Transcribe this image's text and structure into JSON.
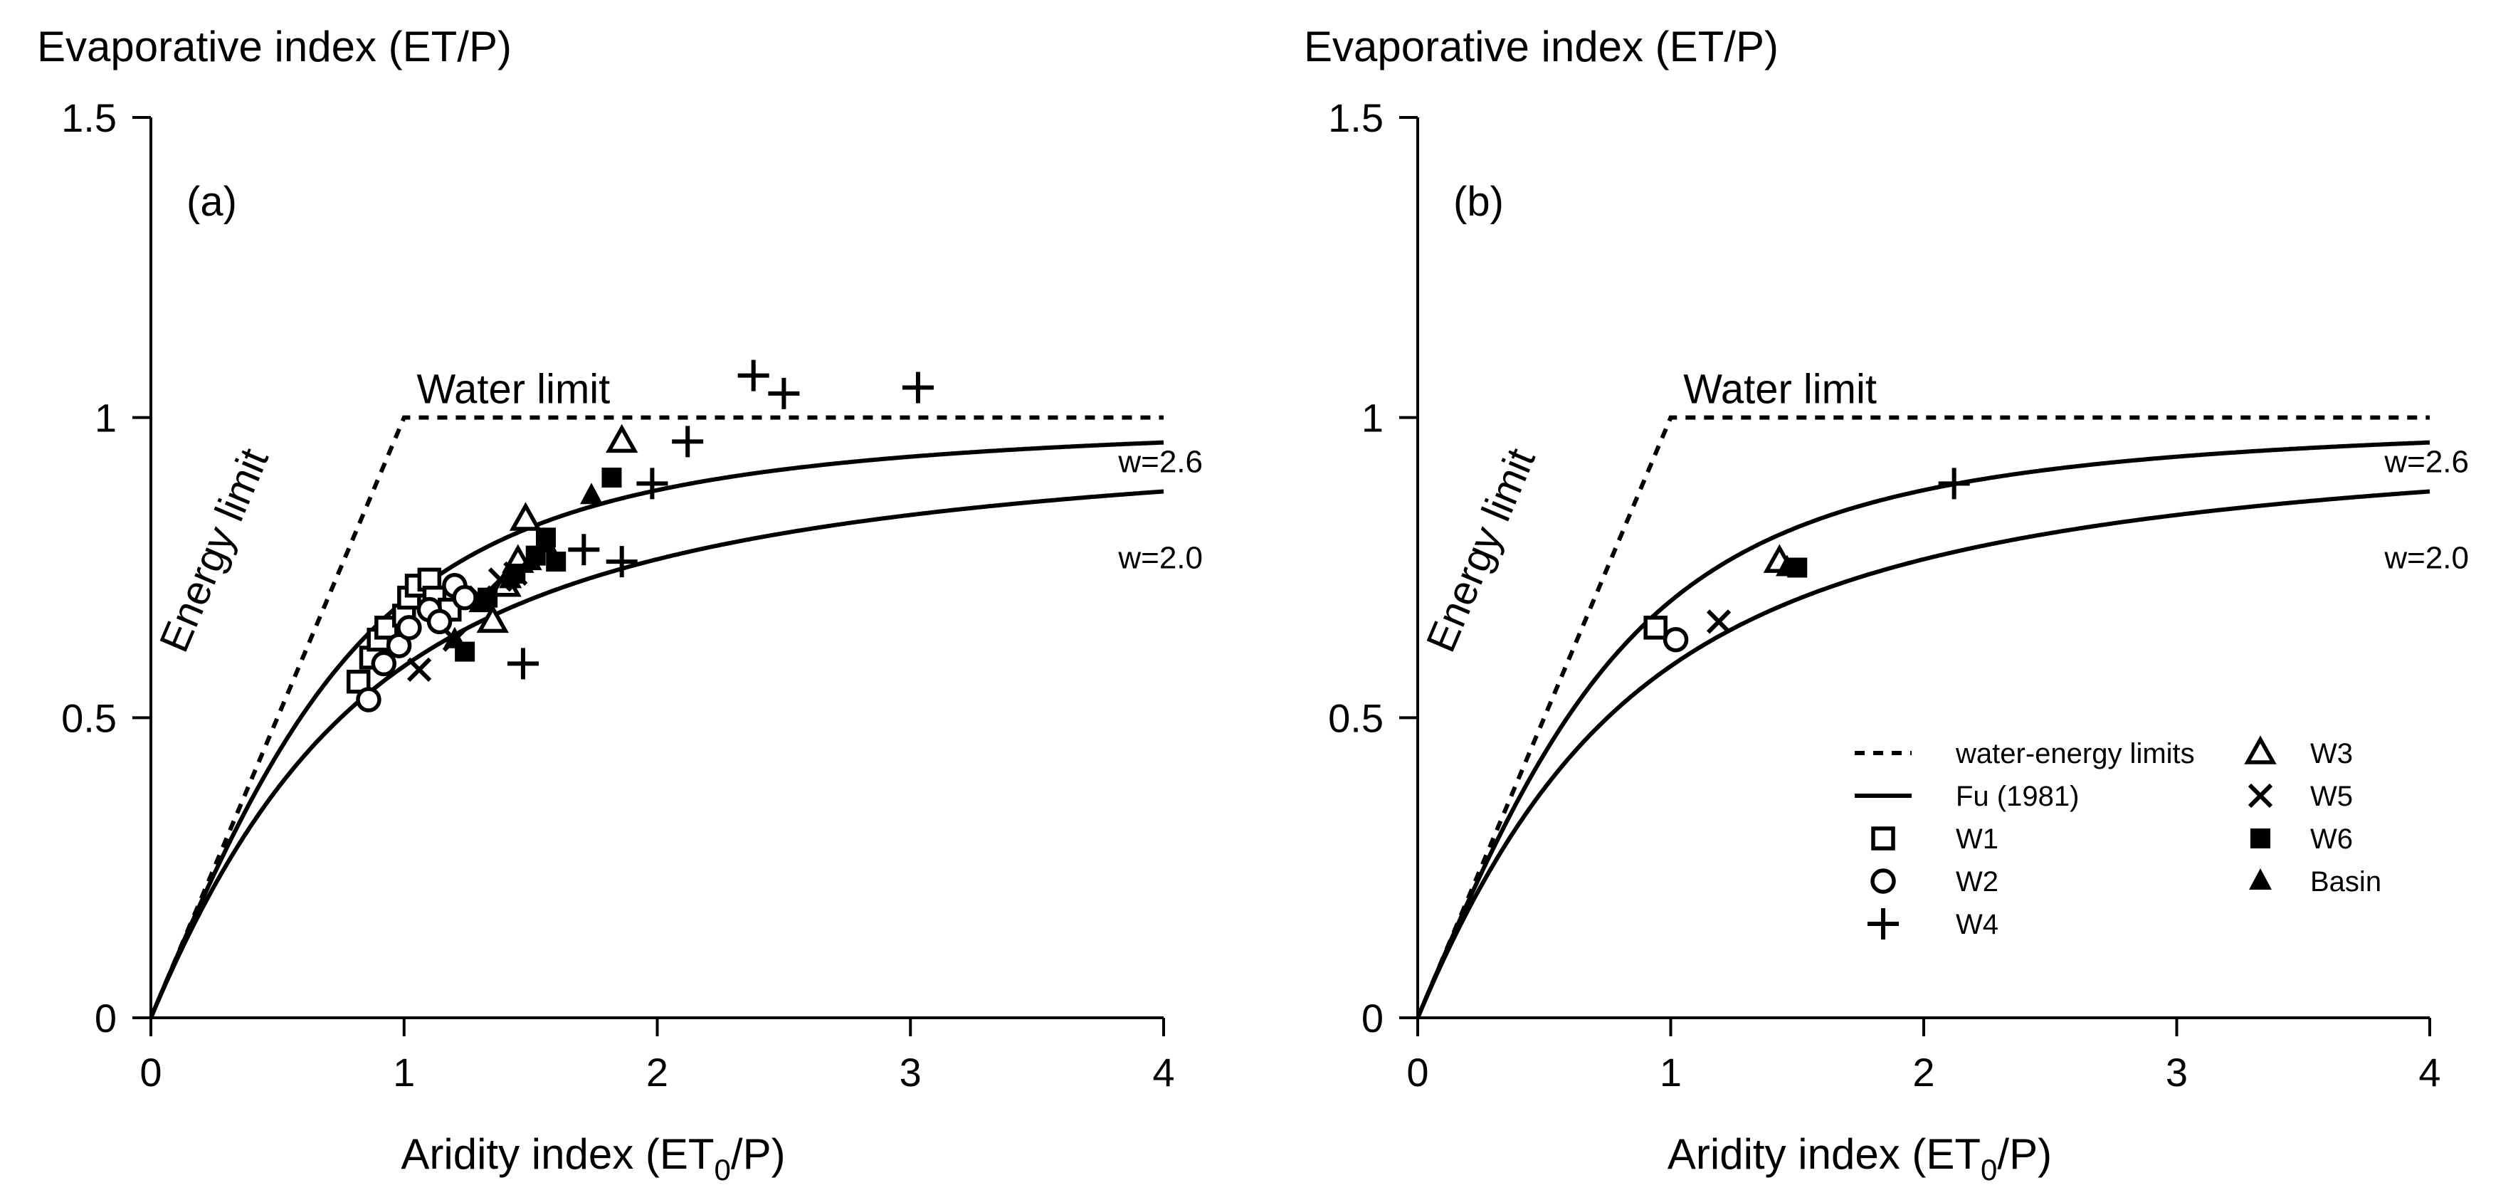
{
  "chart_data": [
    {
      "type": "scatter",
      "panel_label": "(a)",
      "ylabel": "Evaporative index (ET/P)",
      "xlabel_main": "Aridity index (ET",
      "xlabel_sub": "0",
      "xlabel_end": "/P)",
      "xlim": [
        0,
        4
      ],
      "ylim": [
        0,
        1.5
      ],
      "x_ticks": [
        "0",
        "1",
        "2",
        "3",
        "4"
      ],
      "y_ticks": [
        "0",
        "0.5",
        "1",
        "1.5"
      ],
      "water_limit_label": "Water limit",
      "energy_limit_label": "Energy limit",
      "curves": [
        {
          "name": "Fu (1981)",
          "w": 2.6,
          "label": "w=2.6"
        },
        {
          "name": "Fu (1981)",
          "w": 2.0,
          "label": "w=2.0"
        }
      ],
      "series": [
        {
          "name": "W1",
          "marker": "open-square",
          "x": [
            0.82,
            0.87,
            0.9,
            0.93,
            1.0,
            1.02,
            1.05,
            1.1,
            1.12,
            1.18
          ],
          "y": [
            0.56,
            0.6,
            0.63,
            0.65,
            0.67,
            0.7,
            0.72,
            0.73,
            0.7,
            0.68
          ]
        },
        {
          "name": "W2",
          "marker": "open-circle",
          "x": [
            0.86,
            0.92,
            0.98,
            1.02,
            1.1,
            1.14,
            1.2,
            1.24
          ],
          "y": [
            0.53,
            0.59,
            0.62,
            0.65,
            0.68,
            0.66,
            0.72,
            0.7
          ]
        },
        {
          "name": "W3",
          "marker": "open-triangle",
          "x": [
            1.35,
            1.4,
            1.45,
            1.48,
            1.86
          ],
          "y": [
            0.66,
            0.72,
            0.76,
            0.83,
            0.96
          ]
        },
        {
          "name": "W4",
          "marker": "plus",
          "x": [
            2.38,
            2.5,
            3.03,
            2.12,
            1.98,
            1.71,
            1.86,
            1.47
          ],
          "y": [
            1.07,
            1.04,
            1.05,
            0.96,
            0.89,
            0.78,
            0.76,
            0.59
          ]
        },
        {
          "name": "W5",
          "marker": "x",
          "x": [
            1.06,
            1.2,
            1.3,
            1.38,
            1.44
          ],
          "y": [
            0.58,
            0.63,
            0.7,
            0.73,
            0.74
          ]
        },
        {
          "name": "W6",
          "marker": "filled-square",
          "x": [
            1.24,
            1.33,
            1.44,
            1.52,
            1.56,
            1.6,
            1.82
          ],
          "y": [
            0.61,
            0.7,
            0.74,
            0.77,
            0.8,
            0.76,
            0.9
          ]
        },
        {
          "name": "Basin",
          "marker": "filled-triangle",
          "x": [
            1.2,
            1.3,
            1.42,
            1.5,
            1.56,
            1.74
          ],
          "y": [
            0.63,
            0.69,
            0.73,
            0.76,
            0.79,
            0.87
          ]
        }
      ]
    },
    {
      "type": "scatter",
      "panel_label": "(b)",
      "ylabel": "Evaporative index (ET/P)",
      "xlabel_main": "Aridity index (ET",
      "xlabel_sub": "0",
      "xlabel_end": "/P)",
      "xlim": [
        0,
        4
      ],
      "ylim": [
        0,
        1.5
      ],
      "x_ticks": [
        "0",
        "1",
        "2",
        "3",
        "4"
      ],
      "y_ticks": [
        "0",
        "0.5",
        "1",
        "1.5"
      ],
      "water_limit_label": "Water limit",
      "energy_limit_label": "Energy limit",
      "curves": [
        {
          "name": "Fu (1981)",
          "w": 2.6,
          "label": "w=2.6"
        },
        {
          "name": "Fu (1981)",
          "w": 2.0,
          "label": "w=2.0"
        }
      ],
      "series": [
        {
          "name": "W1",
          "marker": "open-square",
          "x": [
            0.94
          ],
          "y": [
            0.65
          ]
        },
        {
          "name": "W2",
          "marker": "open-circle",
          "x": [
            1.02
          ],
          "y": [
            0.63
          ]
        },
        {
          "name": "W3",
          "marker": "open-triangle",
          "x": [
            1.43
          ],
          "y": [
            0.76
          ]
        },
        {
          "name": "W4",
          "marker": "plus",
          "x": [
            2.12
          ],
          "y": [
            0.89
          ]
        },
        {
          "name": "W5",
          "marker": "x",
          "x": [
            1.19
          ],
          "y": [
            0.66
          ]
        },
        {
          "name": "W6",
          "marker": "filled-square",
          "x": [
            1.5
          ],
          "y": [
            0.75
          ]
        },
        {
          "name": "Basin",
          "marker": "filled-triangle",
          "x": [
            1.46
          ],
          "y": [
            0.75
          ]
        }
      ],
      "legend": {
        "placement": "bottom-right",
        "items": [
          {
            "label": "water-energy limits",
            "marker": "dashed-line"
          },
          {
            "label": "Fu (1981)",
            "marker": "solid-line"
          },
          {
            "label": "W1",
            "marker": "open-square"
          },
          {
            "label": "W2",
            "marker": "open-circle"
          },
          {
            "label": "W4",
            "marker": "plus"
          },
          {
            "label": "W3",
            "marker": "open-triangle"
          },
          {
            "label": "W5",
            "marker": "x"
          },
          {
            "label": "W6",
            "marker": "filled-square"
          },
          {
            "label": "Basin",
            "marker": "filled-triangle"
          }
        ]
      }
    }
  ]
}
